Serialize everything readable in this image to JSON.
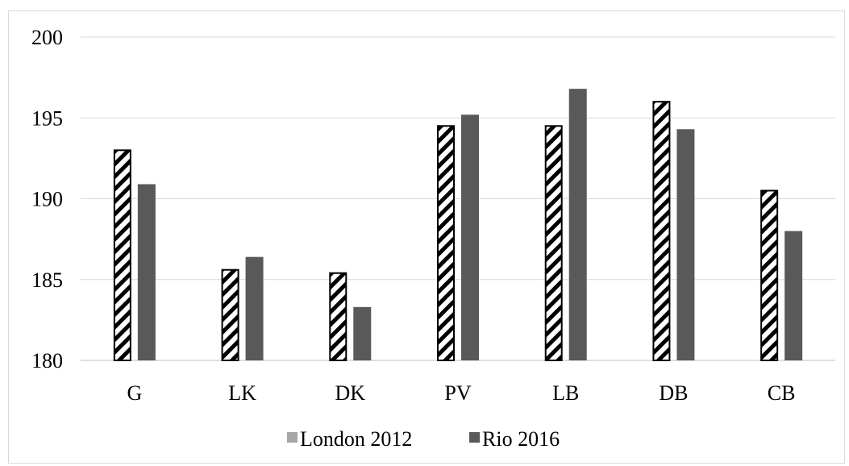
{
  "chart_data": {
    "type": "bar",
    "title": "",
    "xlabel": "",
    "ylabel": "",
    "categories": [
      "G",
      "LK",
      "DK",
      "PV",
      "LB",
      "DB",
      "CB"
    ],
    "series": [
      {
        "name": "London 2012",
        "values": [
          193.0,
          185.6,
          185.4,
          194.5,
          194.5,
          196.0,
          190.5
        ],
        "color": "#ffffff",
        "pattern": "diagonal-stripes",
        "legend_color": "#a6a6a6"
      },
      {
        "name": "Rio 2016",
        "values": [
          190.9,
          186.4,
          183.3,
          195.2,
          196.8,
          194.3,
          188.0
        ],
        "color": "#595959"
      }
    ],
    "ylim": [
      180,
      200
    ],
    "yticks": [
      180,
      185,
      190,
      195,
      200
    ],
    "grid": true,
    "legend_position": "bottom"
  }
}
